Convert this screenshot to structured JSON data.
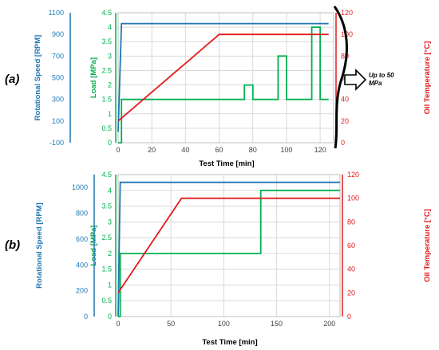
{
  "colors": {
    "speed": "#1f77b4",
    "load": "#00b050",
    "temperature": "#e41a1c",
    "grid": "#d9d9d9",
    "frame": "#bfbfbf",
    "text": "#404040"
  },
  "annotation": {
    "line1": "Up to 50",
    "line2": "MPa",
    "icon": "right-arrow-icon"
  },
  "chart_data": [
    {
      "type": "line",
      "panel_label": "(a)",
      "xlabel": "Test Time [min]",
      "xlim": [
        0,
        128
      ],
      "xticks": [
        0,
        20,
        40,
        60,
        80,
        100,
        120
      ],
      "grid": true,
      "axes": {
        "speed": {
          "label": "Rotational Speed [RPM]",
          "lim": [
            -100,
            1100
          ],
          "ticks": [
            -100,
            100,
            300,
            500,
            700,
            900,
            1100
          ],
          "side": "left-outer"
        },
        "load": {
          "label": "Load [MPa]",
          "lim": [
            0,
            4.5
          ],
          "ticks": [
            0,
            0.5,
            1,
            1.5,
            2,
            2.5,
            3,
            3.5,
            4,
            4.5
          ],
          "tick_labels": [
            "0",
            "0.5",
            "1",
            "1.5",
            "2",
            "2.5",
            "3",
            "3.5",
            "4",
            "4.5"
          ],
          "side": "left"
        },
        "temperature": {
          "label": "Oil Temperature [°C]",
          "lim": [
            0,
            120
          ],
          "ticks": [
            0,
            20,
            40,
            60,
            80,
            100,
            120
          ],
          "side": "right"
        }
      },
      "series": [
        {
          "axis": "speed",
          "color": "speed",
          "x": [
            0,
            2,
            125
          ],
          "y": [
            0,
            1000,
            1000
          ]
        },
        {
          "axis": "load",
          "color": "load",
          "x": [
            0,
            2,
            2,
            75,
            75,
            80,
            80,
            95,
            95,
            100,
            100,
            115,
            115,
            120,
            120,
            125
          ],
          "y": [
            0,
            0,
            1.5,
            1.5,
            2,
            2,
            1.5,
            1.5,
            3,
            3,
            1.5,
            1.5,
            4,
            4,
            1.5,
            1.5
          ]
        },
        {
          "axis": "temperature",
          "color": "temperature",
          "x": [
            0,
            60,
            125
          ],
          "y": [
            20,
            100,
            100
          ]
        }
      ]
    },
    {
      "type": "line",
      "panel_label": "(b)",
      "xlabel": "Test Time [min]",
      "xlim": [
        0,
        210
      ],
      "xticks": [
        0,
        50,
        100,
        150,
        200
      ],
      "grid": true,
      "axes": {
        "speed": {
          "label": "Rotational Speed [RPM]",
          "lim": [
            0,
            1100
          ],
          "ticks": [
            0,
            200,
            400,
            600,
            800,
            1000
          ],
          "side": "left-outer"
        },
        "load": {
          "label": "Load [MPa]",
          "lim": [
            0,
            4.5
          ],
          "ticks": [
            0,
            0.5,
            1,
            1.5,
            2,
            2.5,
            3,
            3.5,
            4,
            4.5
          ],
          "tick_labels": [
            "0",
            "0.5",
            "1",
            "1.5",
            "2",
            "2.5",
            "3",
            "3.5",
            "4",
            "4.5"
          ],
          "side": "left"
        },
        "temperature": {
          "label": "Oil Temperature [°C]",
          "lim": [
            0,
            120
          ],
          "ticks": [
            0,
            20,
            40,
            60,
            80,
            100,
            120
          ],
          "side": "right"
        }
      },
      "series": [
        {
          "axis": "speed",
          "color": "speed",
          "x": [
            0,
            2,
            210
          ],
          "y": [
            0,
            1040,
            1040
          ]
        },
        {
          "axis": "load",
          "color": "load",
          "x": [
            0,
            2,
            2,
            135,
            135,
            210
          ],
          "y": [
            0,
            0,
            2,
            2,
            4,
            4
          ]
        },
        {
          "axis": "temperature",
          "color": "temperature",
          "x": [
            0,
            60,
            210
          ],
          "y": [
            20,
            100,
            100
          ]
        }
      ]
    }
  ]
}
